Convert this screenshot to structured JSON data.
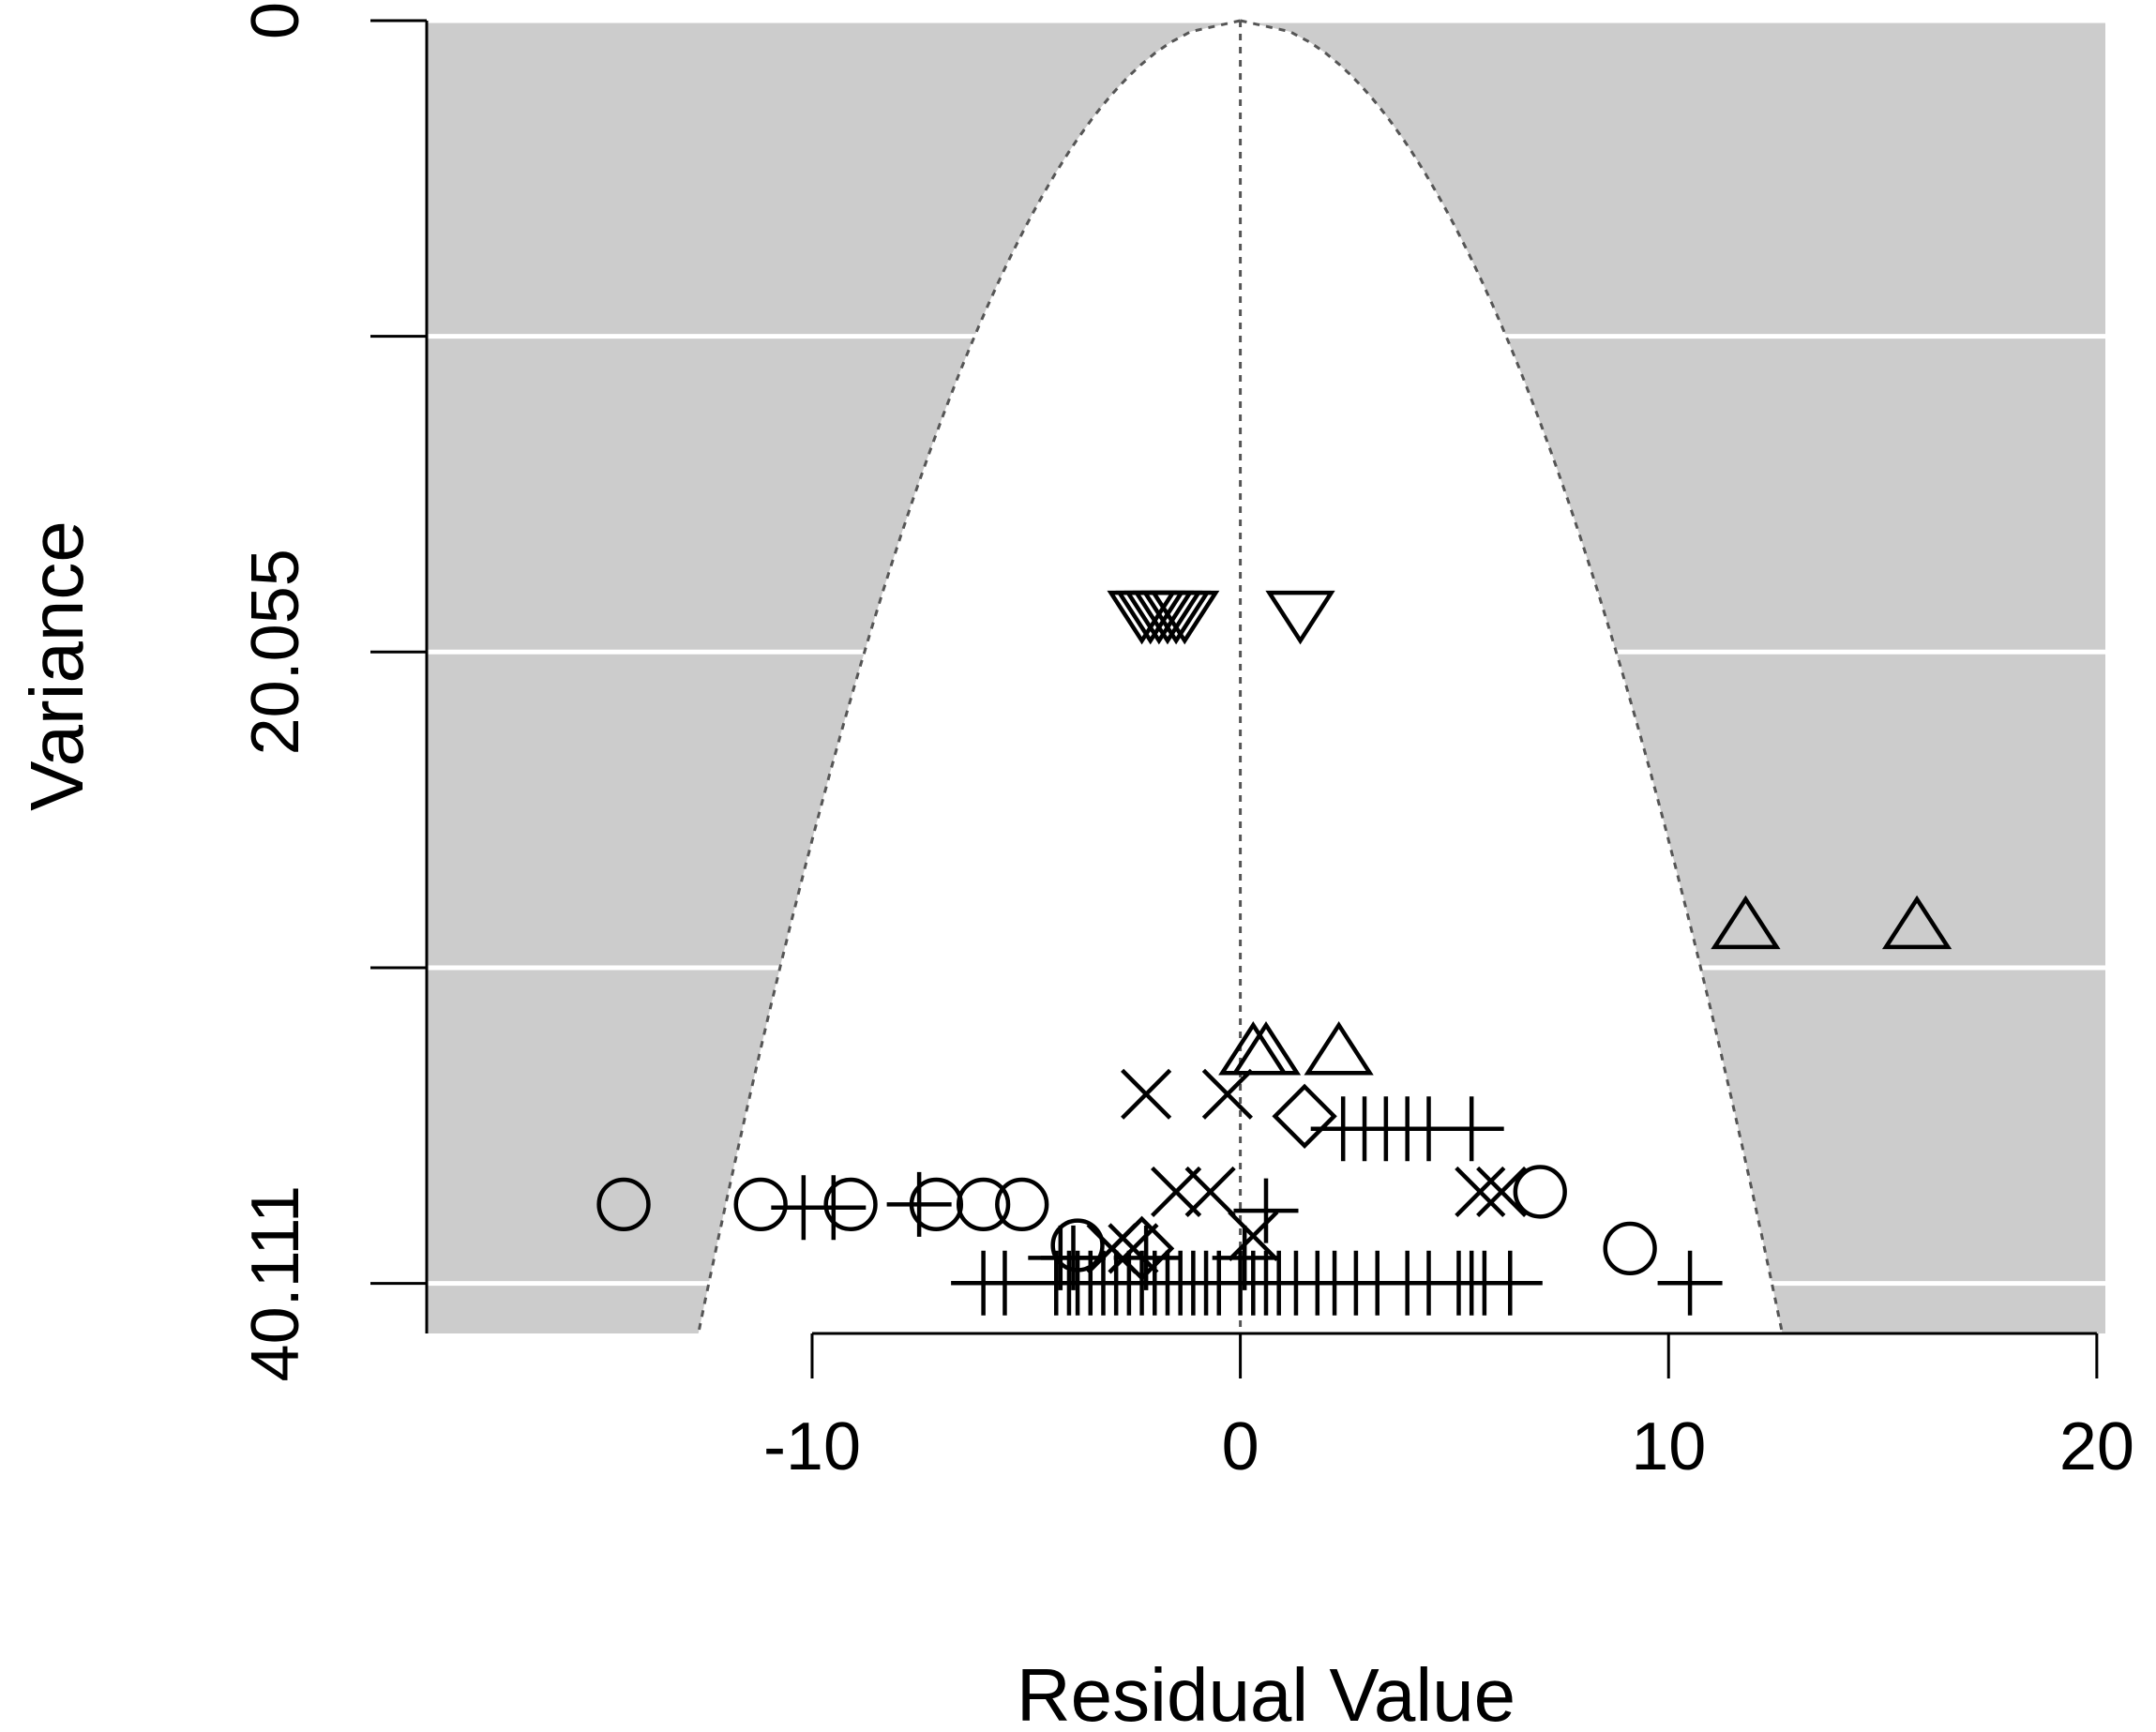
{
  "chart_data": {
    "type": "scatter",
    "title": "",
    "xlabel": "Residual Value",
    "ylabel": "Variance",
    "xlim": [
      -19,
      20.2
    ],
    "ylim": [
      0,
      41.7
    ],
    "y_reversed": true,
    "x_ticks": [
      -10,
      0,
      10,
      20
    ],
    "x_tick_labels": [
      "-10",
      "0",
      "10",
      "20"
    ],
    "y_ticks": [
      0,
      10.0275,
      20.055,
      30.0825,
      40.111
    ],
    "y_tick_labels": [
      "0",
      "",
      "20.055",
      "",
      "40.111"
    ],
    "grid": true,
    "background_color": "#cccccc",
    "funnel_color": "#ffffff",
    "gridline_color": "#ffffff",
    "funnel_boundary": {
      "center": 0,
      "k": 1.96,
      "style": "dotted"
    },
    "series": [
      {
        "marker": "triangle-down",
        "points": [
          [
            -2.3,
            18.8
          ],
          [
            -2.1,
            18.8
          ],
          [
            -1.9,
            18.8
          ],
          [
            -1.7,
            18.8
          ],
          [
            -1.5,
            18.8
          ],
          [
            -1.3,
            18.8
          ],
          [
            1.4,
            18.8
          ]
        ]
      },
      {
        "marker": "triangle-up",
        "points": [
          [
            11.8,
            28.8
          ],
          [
            15.8,
            28.8
          ],
          [
            0.3,
            32.8
          ],
          [
            0.6,
            32.8
          ],
          [
            2.3,
            32.8
          ]
        ]
      },
      {
        "marker": "x",
        "points": [
          [
            -2.2,
            34.1
          ],
          [
            -0.3,
            34.1
          ],
          [
            -1.5,
            37.2
          ],
          [
            -0.7,
            37.2
          ],
          [
            5.6,
            37.2
          ],
          [
            6.1,
            37.2
          ],
          [
            -3.0,
            39.0
          ],
          [
            -2.5,
            39.0
          ],
          [
            0.3,
            38.6
          ]
        ]
      },
      {
        "marker": "diamond",
        "points": [
          [
            1.5,
            34.8
          ],
          [
            -2.3,
            39.0
          ]
        ]
      },
      {
        "marker": "circle",
        "points": [
          [
            -14.4,
            37.6
          ],
          [
            -11.2,
            37.6
          ],
          [
            -9.1,
            37.6
          ],
          [
            -7.1,
            37.6
          ],
          [
            -6.0,
            37.6
          ],
          [
            -5.1,
            37.6
          ],
          [
            -3.8,
            38.9
          ],
          [
            7.0,
            37.2
          ],
          [
            9.1,
            39.0
          ]
        ]
      },
      {
        "marker": "plus",
        "points": [
          [
            -10.2,
            37.7
          ],
          [
            -9.5,
            37.7
          ],
          [
            -7.5,
            37.6
          ],
          [
            0.6,
            37.8
          ],
          [
            2.4,
            35.2
          ],
          [
            2.9,
            35.2
          ],
          [
            3.4,
            35.2
          ],
          [
            3.9,
            35.2
          ],
          [
            4.4,
            35.2
          ],
          [
            5.4,
            35.2
          ],
          [
            -6.0,
            40.1
          ],
          [
            -5.5,
            40.1
          ],
          [
            -4.3,
            40.1
          ],
          [
            -4.0,
            40.1
          ],
          [
            -3.8,
            40.1
          ],
          [
            -3.5,
            40.1
          ],
          [
            -3.2,
            40.1
          ],
          [
            -2.9,
            40.1
          ],
          [
            -2.6,
            40.1
          ],
          [
            -2.3,
            40.1
          ],
          [
            -2.0,
            40.1
          ],
          [
            -1.7,
            40.1
          ],
          [
            -1.4,
            40.1
          ],
          [
            -1.1,
            40.1
          ],
          [
            -0.8,
            40.1
          ],
          [
            -0.5,
            40.1
          ],
          [
            0.0,
            40.1
          ],
          [
            0.3,
            40.1
          ],
          [
            0.6,
            40.1
          ],
          [
            0.9,
            40.1
          ],
          [
            1.3,
            40.1
          ],
          [
            1.8,
            40.1
          ],
          [
            2.2,
            40.1
          ],
          [
            2.7,
            40.1
          ],
          [
            3.2,
            40.1
          ],
          [
            3.9,
            40.1
          ],
          [
            4.4,
            40.1
          ],
          [
            5.1,
            40.1
          ],
          [
            5.4,
            40.1
          ],
          [
            5.7,
            40.1
          ],
          [
            6.3,
            40.1
          ],
          [
            10.5,
            40.1
          ],
          [
            -4.2,
            39.3
          ],
          [
            -3.9,
            39.3
          ],
          [
            -2.2,
            39.3
          ],
          [
            0.1,
            39.3
          ]
        ]
      }
    ]
  }
}
